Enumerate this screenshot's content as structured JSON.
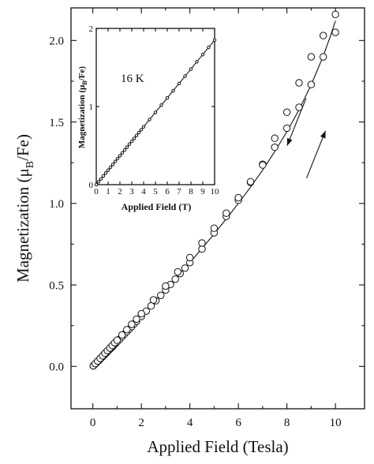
{
  "chart_data": [
    {
      "type": "scatter",
      "title": "",
      "xlabel": "Applied Field (Tesla)",
      "ylabel": "Magnetization (μ",
      "ylabel_sub": "B",
      "ylabel_tail": "/Fe)",
      "xlim": [
        -0.9,
        11.2
      ],
      "ylim": [
        -0.26,
        2.2
      ],
      "xticks": [
        0,
        2,
        4,
        6,
        8,
        10
      ],
      "yticks": [
        0.0,
        0.5,
        1.0,
        1.5,
        2.0
      ],
      "xtick_labels": [
        "0",
        "2",
        "4",
        "6",
        "8",
        "10"
      ],
      "ytick_labels": [
        "0.0",
        "0.5",
        "1.0",
        "1.5",
        "2.0"
      ],
      "series": [
        {
          "kind": "points",
          "marker": "open-circle",
          "x": [
            0.02,
            0.05,
            0.1,
            0.15,
            0.2,
            0.25,
            0.3,
            0.35,
            0.4,
            0.45,
            0.5,
            0.55,
            0.6,
            0.65,
            0.7,
            0.75,
            0.8,
            0.85,
            0.9,
            0.95,
            1.0,
            1.1,
            1.2,
            1.3,
            1.4,
            1.5,
            1.6,
            1.7,
            1.8,
            2.0,
            2.2,
            2.4,
            2.6,
            2.8,
            3.0,
            3.2,
            3.4,
            3.6,
            3.8,
            4.0,
            4.5,
            5.0,
            5.5,
            6.0,
            6.5,
            7.0,
            7.5,
            8.0,
            8.5,
            9.0,
            9.5,
            10.0
          ],
          "y": [
            0.003,
            0.008,
            0.015,
            0.022,
            0.03,
            0.037,
            0.045,
            0.052,
            0.06,
            0.067,
            0.075,
            0.082,
            0.09,
            0.098,
            0.105,
            0.113,
            0.12,
            0.128,
            0.136,
            0.143,
            0.151,
            0.166,
            0.182,
            0.197,
            0.213,
            0.228,
            0.244,
            0.26,
            0.276,
            0.307,
            0.339,
            0.371,
            0.403,
            0.436,
            0.469,
            0.502,
            0.535,
            0.569,
            0.603,
            0.637,
            0.72,
            0.82,
            0.92,
            1.02,
            1.13,
            1.24,
            1.4,
            1.56,
            1.74,
            1.9,
            2.03,
            2.16
          ]
        },
        {
          "kind": "points",
          "marker": "open-circle",
          "x": [
            0.02,
            0.1,
            0.2,
            0.3,
            0.4,
            0.5,
            0.6,
            0.7,
            0.8,
            0.9,
            1.0,
            1.2,
            1.4,
            1.6,
            1.8,
            2.0,
            2.5,
            3.0,
            3.5,
            4.0,
            4.5,
            5.0,
            5.5,
            6.0,
            6.5,
            7.0,
            7.5,
            8.0,
            8.5,
            9.0,
            9.5,
            10.0
          ],
          "y": [
            0.004,
            0.017,
            0.033,
            0.049,
            0.065,
            0.081,
            0.097,
            0.113,
            0.129,
            0.145,
            0.161,
            0.193,
            0.225,
            0.258,
            0.29,
            0.323,
            0.408,
            0.493,
            0.58,
            0.668,
            0.757,
            0.848,
            0.94,
            1.035,
            1.133,
            1.236,
            1.345,
            1.462,
            1.59,
            1.73,
            1.9,
            2.05
          ]
        },
        {
          "kind": "line",
          "x": [
            0,
            0.5,
            1,
            1.5,
            2,
            2.5,
            3,
            3.5,
            4,
            4.5,
            5,
            5.5,
            6,
            6.5,
            7,
            7.5,
            8,
            8.5,
            9,
            9.5,
            9.8,
            10.0
          ],
          "y": [
            0,
            0.075,
            0.151,
            0.228,
            0.307,
            0.387,
            0.469,
            0.552,
            0.637,
            0.724,
            0.813,
            0.905,
            1.0,
            1.1,
            1.205,
            1.318,
            1.44,
            1.575,
            1.728,
            1.905,
            2.03,
            2.12
          ]
        }
      ],
      "annotations": [
        {
          "kind": "arrow",
          "direction": "down-left",
          "x": 8.4,
          "y": 1.5
        },
        {
          "kind": "arrow",
          "direction": "up-right",
          "x": 9.2,
          "y": 1.3
        }
      ]
    },
    {
      "type": "scatter",
      "title": "16 K",
      "xlabel": "Applied Field (T)",
      "ylabel": "Magnetization (μ",
      "ylabel_sub": "B",
      "ylabel_tail": "/Fe)",
      "xlim": [
        0,
        10
      ],
      "ylim": [
        0,
        2
      ],
      "xticks": [
        0,
        1,
        2,
        3,
        4,
        5,
        6,
        7,
        8,
        9,
        10
      ],
      "yticks": [
        0,
        1,
        2
      ],
      "xtick_labels": [
        "0",
        "1",
        "2",
        "3",
        "4",
        "5",
        "6",
        "7",
        "8",
        "9",
        "10"
      ],
      "ytick_labels": [
        "0",
        "1",
        "2"
      ],
      "series": [
        {
          "kind": "points",
          "marker": "open-circle",
          "x": [
            0.0,
            0.2,
            0.4,
            0.6,
            0.8,
            1.0,
            1.2,
            1.4,
            1.6,
            1.8,
            2.0,
            2.2,
            2.4,
            2.6,
            2.8,
            3.0,
            3.2,
            3.4,
            3.6,
            3.8,
            4.0,
            4.5,
            5.0,
            5.5,
            6.0,
            6.5,
            7.0,
            7.5,
            8.0,
            8.5,
            9.0,
            9.5,
            10.0
          ],
          "y": [
            0.0,
            0.037,
            0.074,
            0.111,
            0.148,
            0.185,
            0.222,
            0.259,
            0.296,
            0.333,
            0.37,
            0.407,
            0.444,
            0.481,
            0.518,
            0.555,
            0.592,
            0.629,
            0.666,
            0.703,
            0.74,
            0.833,
            0.925,
            1.018,
            1.11,
            1.203,
            1.295,
            1.388,
            1.48,
            1.573,
            1.665,
            1.758,
            1.85
          ]
        },
        {
          "kind": "line",
          "x": [
            0,
            10
          ],
          "y": [
            0,
            1.85
          ]
        }
      ]
    }
  ]
}
